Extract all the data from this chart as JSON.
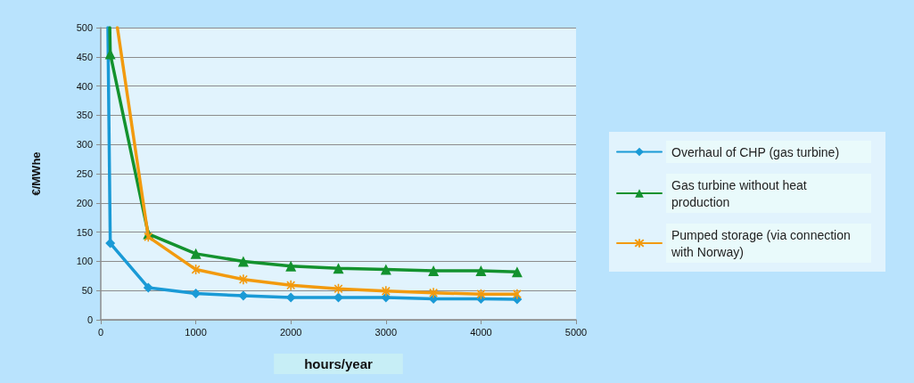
{
  "chart_data": {
    "type": "line",
    "xlabel": "hours/year",
    "ylabel": "€/MWhe",
    "xlim": [
      0,
      5000
    ],
    "xticks": [
      0,
      1000,
      2000,
      3000,
      4000,
      5000
    ],
    "ylim": [
      0,
      500
    ],
    "yticks": [
      0,
      50,
      100,
      150,
      200,
      250,
      300,
      350,
      400,
      450,
      500
    ],
    "grid": "y",
    "legend": "right",
    "line_style": "solid",
    "series": [
      {
        "name": "Overhaul of CHP (gas turbine)",
        "color": "#1a9ad6",
        "marker": "diamond",
        "x": [
          75,
          100,
          500,
          1000,
          1500,
          2000,
          2500,
          3000,
          3500,
          4000,
          4380
        ],
        "values": [
          500,
          131,
          55,
          45,
          41,
          38,
          38,
          38,
          36,
          36,
          35
        ]
      },
      {
        "name": "Gas turbine without heat production",
        "color": "#13922e",
        "marker": "triangle",
        "x": [
          95,
          100,
          500,
          1000,
          1500,
          2000,
          2500,
          3000,
          3500,
          4000,
          4380
        ],
        "values": [
          500,
          455,
          147,
          113,
          100,
          92,
          88,
          86,
          84,
          84,
          82
        ]
      },
      {
        "name": "Pumped storage (via connection with Norway)",
        "color": "#f29a0e",
        "marker": "cross",
        "x": [
          175,
          500,
          1000,
          1500,
          2000,
          2500,
          3000,
          3500,
          4000,
          4380
        ],
        "values": [
          500,
          142,
          86,
          69,
          59,
          53,
          49,
          46,
          44,
          44
        ]
      }
    ]
  }
}
